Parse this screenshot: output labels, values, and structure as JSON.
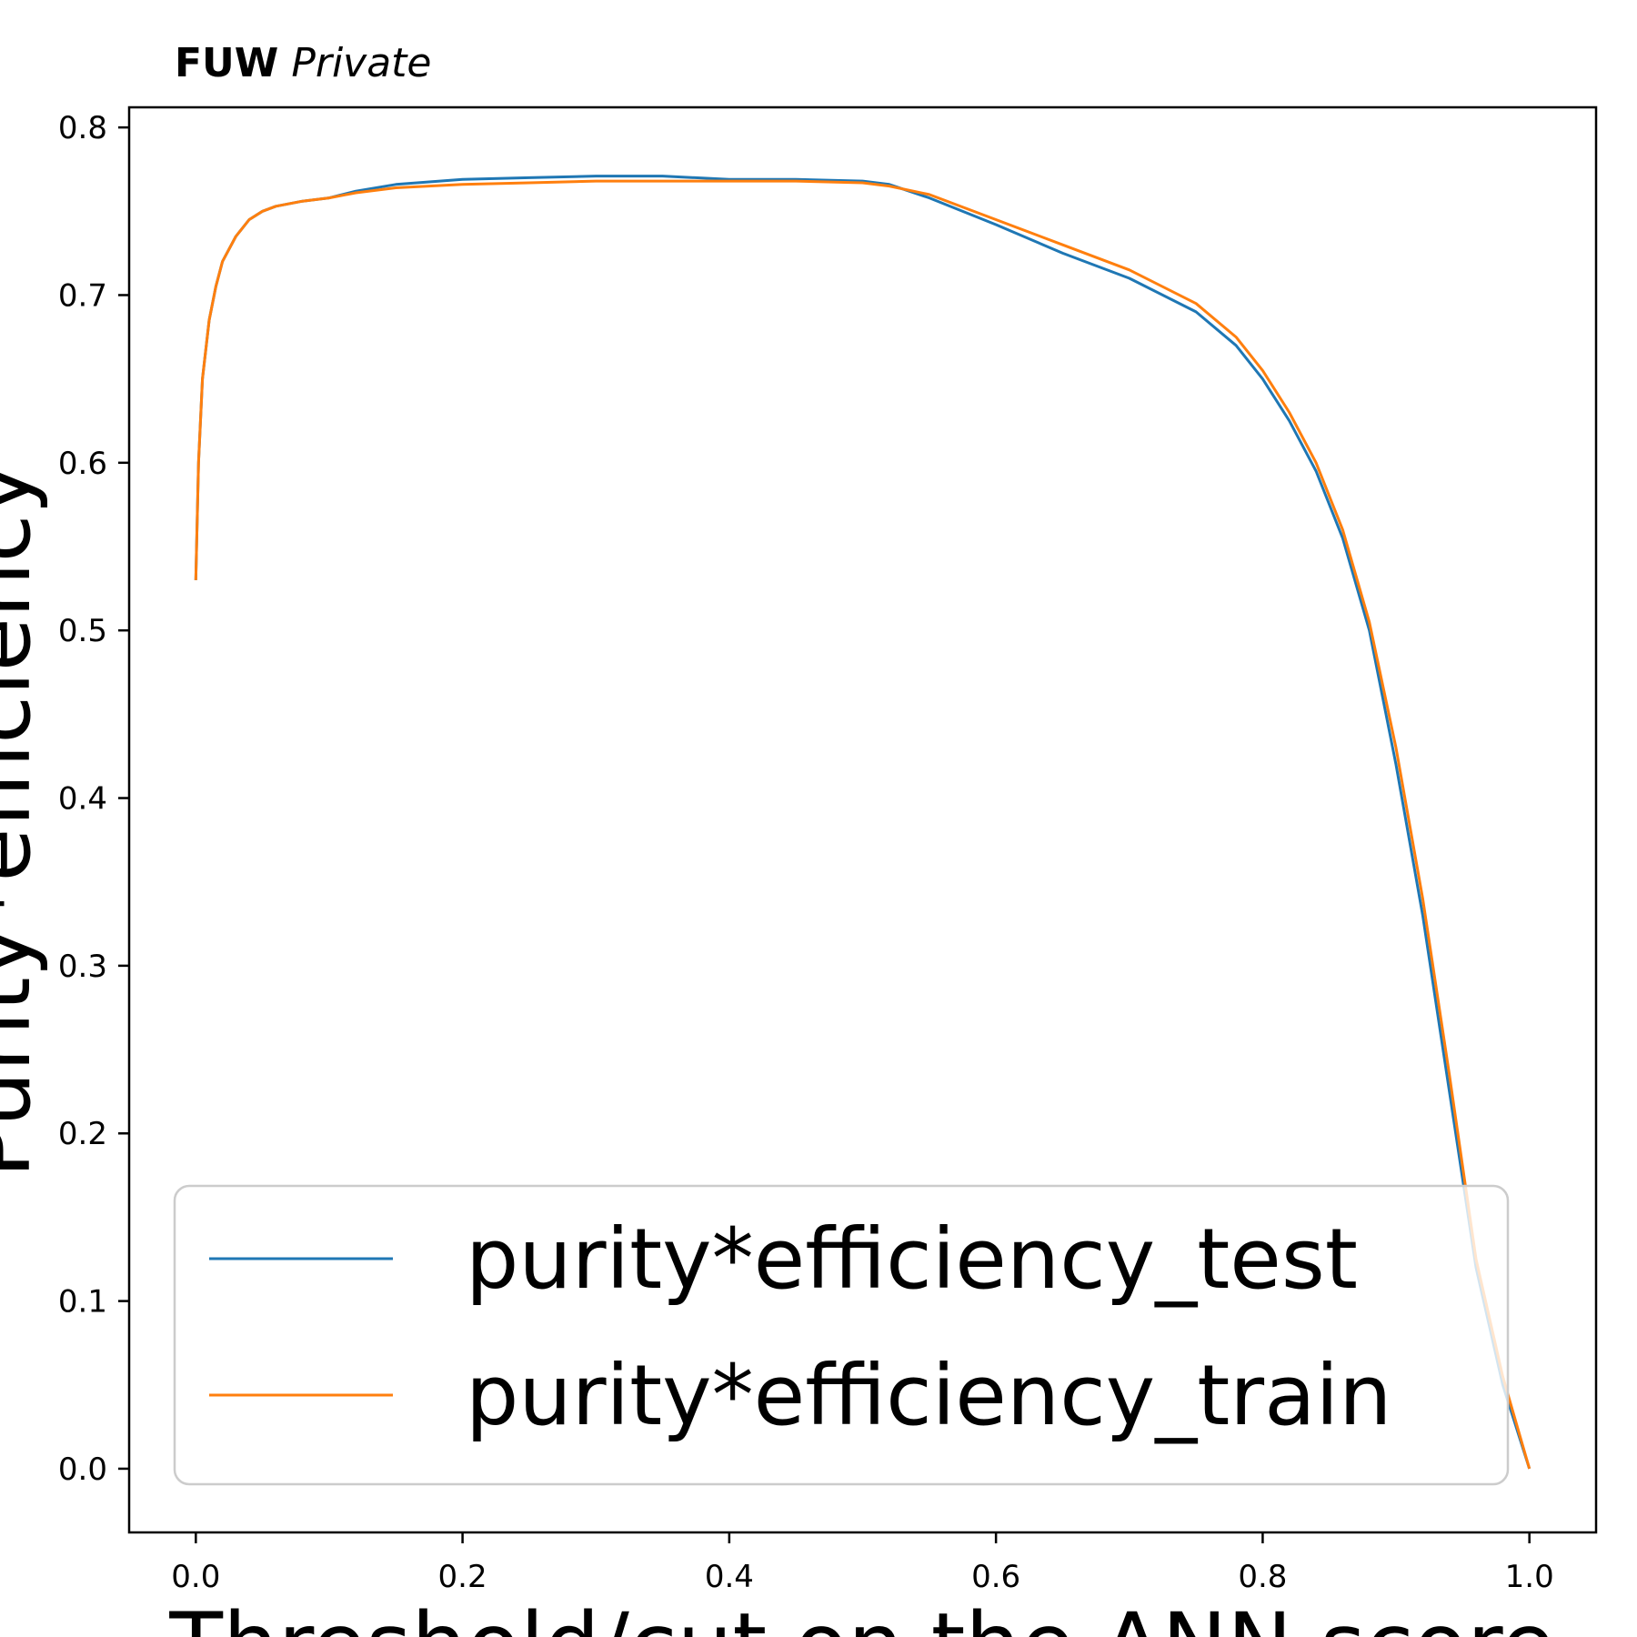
{
  "header": {
    "bold_text": "FUW",
    "italic_text": "Private"
  },
  "chart_data": {
    "type": "line",
    "xlabel": "Threshold/cut on the ANN score",
    "ylabel": "Purity*efficiency",
    "xlim": [
      -0.05,
      1.05
    ],
    "ylim": [
      -0.038,
      0.812
    ],
    "x_ticks": [
      0.0,
      0.2,
      0.4,
      0.6,
      0.8,
      1.0
    ],
    "x_tick_labels": [
      "0.0",
      "0.2",
      "0.4",
      "0.6",
      "0.8",
      "1.0"
    ],
    "y_ticks": [
      0.0,
      0.1,
      0.2,
      0.3,
      0.4,
      0.5,
      0.6,
      0.7,
      0.8
    ],
    "y_tick_labels": [
      "0.0",
      "0.1",
      "0.2",
      "0.3",
      "0.4",
      "0.5",
      "0.6",
      "0.7",
      "0.8"
    ],
    "grid": false,
    "legend": {
      "placement": "lower-center"
    },
    "series": [
      {
        "name": "purity*efficiency_test",
        "color": "#1f77b4",
        "x": [
          0.0,
          0.002,
          0.005,
          0.01,
          0.015,
          0.02,
          0.03,
          0.04,
          0.05,
          0.06,
          0.08,
          0.1,
          0.12,
          0.15,
          0.2,
          0.25,
          0.3,
          0.35,
          0.4,
          0.45,
          0.5,
          0.52,
          0.55,
          0.6,
          0.65,
          0.7,
          0.75,
          0.78,
          0.8,
          0.82,
          0.84,
          0.86,
          0.88,
          0.9,
          0.92,
          0.94,
          0.96,
          0.98,
          1.0
        ],
        "y": [
          0.53,
          0.6,
          0.65,
          0.685,
          0.705,
          0.72,
          0.735,
          0.745,
          0.75,
          0.753,
          0.756,
          0.758,
          0.762,
          0.766,
          0.769,
          0.77,
          0.771,
          0.771,
          0.769,
          0.769,
          0.768,
          0.766,
          0.758,
          0.742,
          0.725,
          0.71,
          0.69,
          0.67,
          0.65,
          0.625,
          0.595,
          0.555,
          0.5,
          0.42,
          0.33,
          0.225,
          0.12,
          0.05,
          0.0
        ]
      },
      {
        "name": "purity*efficiency_train",
        "color": "#ff7f0e",
        "x": [
          0.0,
          0.002,
          0.005,
          0.01,
          0.015,
          0.02,
          0.03,
          0.04,
          0.05,
          0.06,
          0.08,
          0.1,
          0.12,
          0.15,
          0.2,
          0.25,
          0.3,
          0.35,
          0.4,
          0.45,
          0.5,
          0.52,
          0.55,
          0.6,
          0.65,
          0.7,
          0.75,
          0.78,
          0.8,
          0.82,
          0.84,
          0.86,
          0.88,
          0.9,
          0.92,
          0.94,
          0.96,
          0.98,
          1.0
        ],
        "y": [
          0.53,
          0.6,
          0.65,
          0.685,
          0.705,
          0.72,
          0.735,
          0.745,
          0.75,
          0.753,
          0.756,
          0.758,
          0.761,
          0.764,
          0.766,
          0.767,
          0.768,
          0.768,
          0.768,
          0.768,
          0.767,
          0.765,
          0.76,
          0.745,
          0.73,
          0.715,
          0.695,
          0.675,
          0.655,
          0.63,
          0.6,
          0.56,
          0.505,
          0.43,
          0.34,
          0.235,
          0.125,
          0.055,
          0.0
        ]
      }
    ]
  }
}
